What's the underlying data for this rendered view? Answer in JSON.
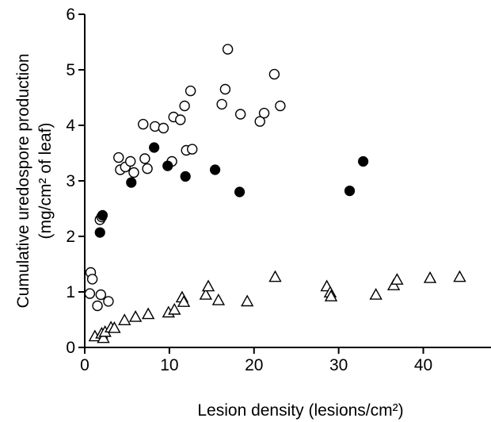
{
  "chart_data": {
    "type": "scatter",
    "title": "",
    "xlabel": "Lesion density (lesions/cm²)",
    "ylabel_line1": "Cumulative uredospore production",
    "ylabel_line2": "(mg/cm² of leaf)",
    "xlim": [
      0,
      48
    ],
    "ylim": [
      0,
      6
    ],
    "xticks": [
      0,
      10,
      20,
      30,
      40
    ],
    "yticks": [
      0,
      1,
      2,
      3,
      4,
      5,
      6
    ],
    "grid": false,
    "legend": "none",
    "series": [
      {
        "marker": "open-circle",
        "points": [
          [
            0.7,
            1.35
          ],
          [
            0.9,
            1.23
          ],
          [
            0.6,
            0.97
          ],
          [
            1.5,
            0.75
          ],
          [
            1.9,
            0.95
          ],
          [
            2.8,
            0.83
          ],
          [
            1.8,
            2.3
          ],
          [
            2.0,
            2.35
          ],
          [
            4.0,
            3.42
          ],
          [
            4.2,
            3.2
          ],
          [
            4.8,
            3.25
          ],
          [
            5.4,
            3.35
          ],
          [
            5.8,
            3.15
          ],
          [
            6.9,
            4.02
          ],
          [
            7.1,
            3.4
          ],
          [
            7.4,
            3.22
          ],
          [
            8.3,
            3.98
          ],
          [
            9.3,
            3.95
          ],
          [
            10.3,
            3.35
          ],
          [
            10.5,
            4.15
          ],
          [
            11.3,
            4.1
          ],
          [
            11.8,
            4.35
          ],
          [
            12.0,
            3.55
          ],
          [
            12.5,
            4.62
          ],
          [
            12.7,
            3.57
          ],
          [
            16.2,
            4.38
          ],
          [
            16.6,
            4.65
          ],
          [
            16.9,
            5.37
          ],
          [
            18.4,
            4.2
          ],
          [
            20.7,
            4.07
          ],
          [
            21.2,
            4.22
          ],
          [
            22.4,
            4.92
          ],
          [
            23.1,
            4.35
          ]
        ]
      },
      {
        "marker": "filled-circle",
        "points": [
          [
            1.8,
            2.07
          ],
          [
            2.1,
            2.38
          ],
          [
            5.5,
            2.97
          ],
          [
            8.2,
            3.6
          ],
          [
            9.8,
            3.27
          ],
          [
            11.9,
            3.08
          ],
          [
            15.4,
            3.2
          ],
          [
            18.3,
            2.8
          ],
          [
            31.3,
            2.82
          ],
          [
            32.9,
            3.35
          ]
        ]
      },
      {
        "marker": "open-triangle",
        "points": [
          [
            1.2,
            0.2
          ],
          [
            2.0,
            0.25
          ],
          [
            2.2,
            0.17
          ],
          [
            2.4,
            0.28
          ],
          [
            3.1,
            0.36
          ],
          [
            3.5,
            0.35
          ],
          [
            4.7,
            0.49
          ],
          [
            6.0,
            0.55
          ],
          [
            7.5,
            0.6
          ],
          [
            9.9,
            0.63
          ],
          [
            10.6,
            0.68
          ],
          [
            11.5,
            0.9
          ],
          [
            11.7,
            0.82
          ],
          [
            14.3,
            0.95
          ],
          [
            14.6,
            1.1
          ],
          [
            15.8,
            0.85
          ],
          [
            19.2,
            0.83
          ],
          [
            22.5,
            1.27
          ],
          [
            28.6,
            1.1
          ],
          [
            29.0,
            0.99
          ],
          [
            29.1,
            0.92
          ],
          [
            34.4,
            0.95
          ],
          [
            36.5,
            1.12
          ],
          [
            36.9,
            1.22
          ],
          [
            40.8,
            1.25
          ],
          [
            44.3,
            1.27
          ]
        ]
      }
    ]
  }
}
